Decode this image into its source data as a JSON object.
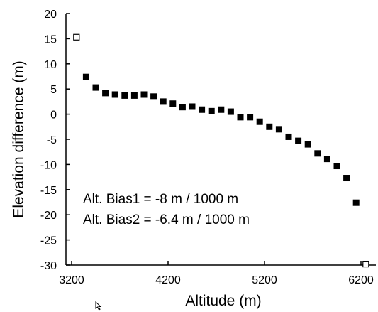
{
  "chart_data": {
    "type": "scatter",
    "xlabel": "Altitude (m)",
    "ylabel": "Elevation difference (m)",
    "xlim": [
      3200,
      6300
    ],
    "ylim": [
      -30,
      20
    ],
    "x_ticks": [
      3200,
      4200,
      5200,
      6200
    ],
    "y_ticks": [
      20,
      15,
      10,
      5,
      0,
      -5,
      -10,
      -15,
      -20,
      -25,
      -30
    ],
    "grid": false,
    "series": [
      {
        "marker": "filled-square",
        "color": "#000000",
        "points": [
          {
            "x": 3350,
            "y": 7.4
          },
          {
            "x": 3450,
            "y": 5.3
          },
          {
            "x": 3550,
            "y": 4.2
          },
          {
            "x": 3650,
            "y": 3.9
          },
          {
            "x": 3750,
            "y": 3.7
          },
          {
            "x": 3850,
            "y": 3.7
          },
          {
            "x": 3950,
            "y": 3.9
          },
          {
            "x": 4050,
            "y": 3.5
          },
          {
            "x": 4150,
            "y": 2.5
          },
          {
            "x": 4250,
            "y": 2.1
          },
          {
            "x": 4350,
            "y": 1.4
          },
          {
            "x": 4450,
            "y": 1.5
          },
          {
            "x": 4550,
            "y": 0.9
          },
          {
            "x": 4650,
            "y": 0.6
          },
          {
            "x": 4750,
            "y": 0.9
          },
          {
            "x": 4850,
            "y": 0.5
          },
          {
            "x": 4950,
            "y": -0.6
          },
          {
            "x": 5050,
            "y": -0.6
          },
          {
            "x": 5150,
            "y": -1.5
          },
          {
            "x": 5250,
            "y": -2.5
          },
          {
            "x": 5350,
            "y": -3.0
          },
          {
            "x": 5450,
            "y": -4.5
          },
          {
            "x": 5550,
            "y": -5.3
          },
          {
            "x": 5650,
            "y": -6.0
          },
          {
            "x": 5750,
            "y": -7.8
          },
          {
            "x": 5850,
            "y": -8.9
          },
          {
            "x": 5950,
            "y": -10.3
          },
          {
            "x": 6050,
            "y": -12.7
          },
          {
            "x": 6150,
            "y": -17.6
          }
        ]
      },
      {
        "marker": "hollow-square",
        "color": "#000000",
        "points": [
          {
            "x": 3250,
            "y": 15.3
          },
          {
            "x": 6250,
            "y": -29.8
          }
        ]
      }
    ],
    "annotations": [
      "Alt. Bias1 = -8 m / 1000 m",
      "Alt. Bias2 = -6.4 m / 1000 m"
    ]
  }
}
